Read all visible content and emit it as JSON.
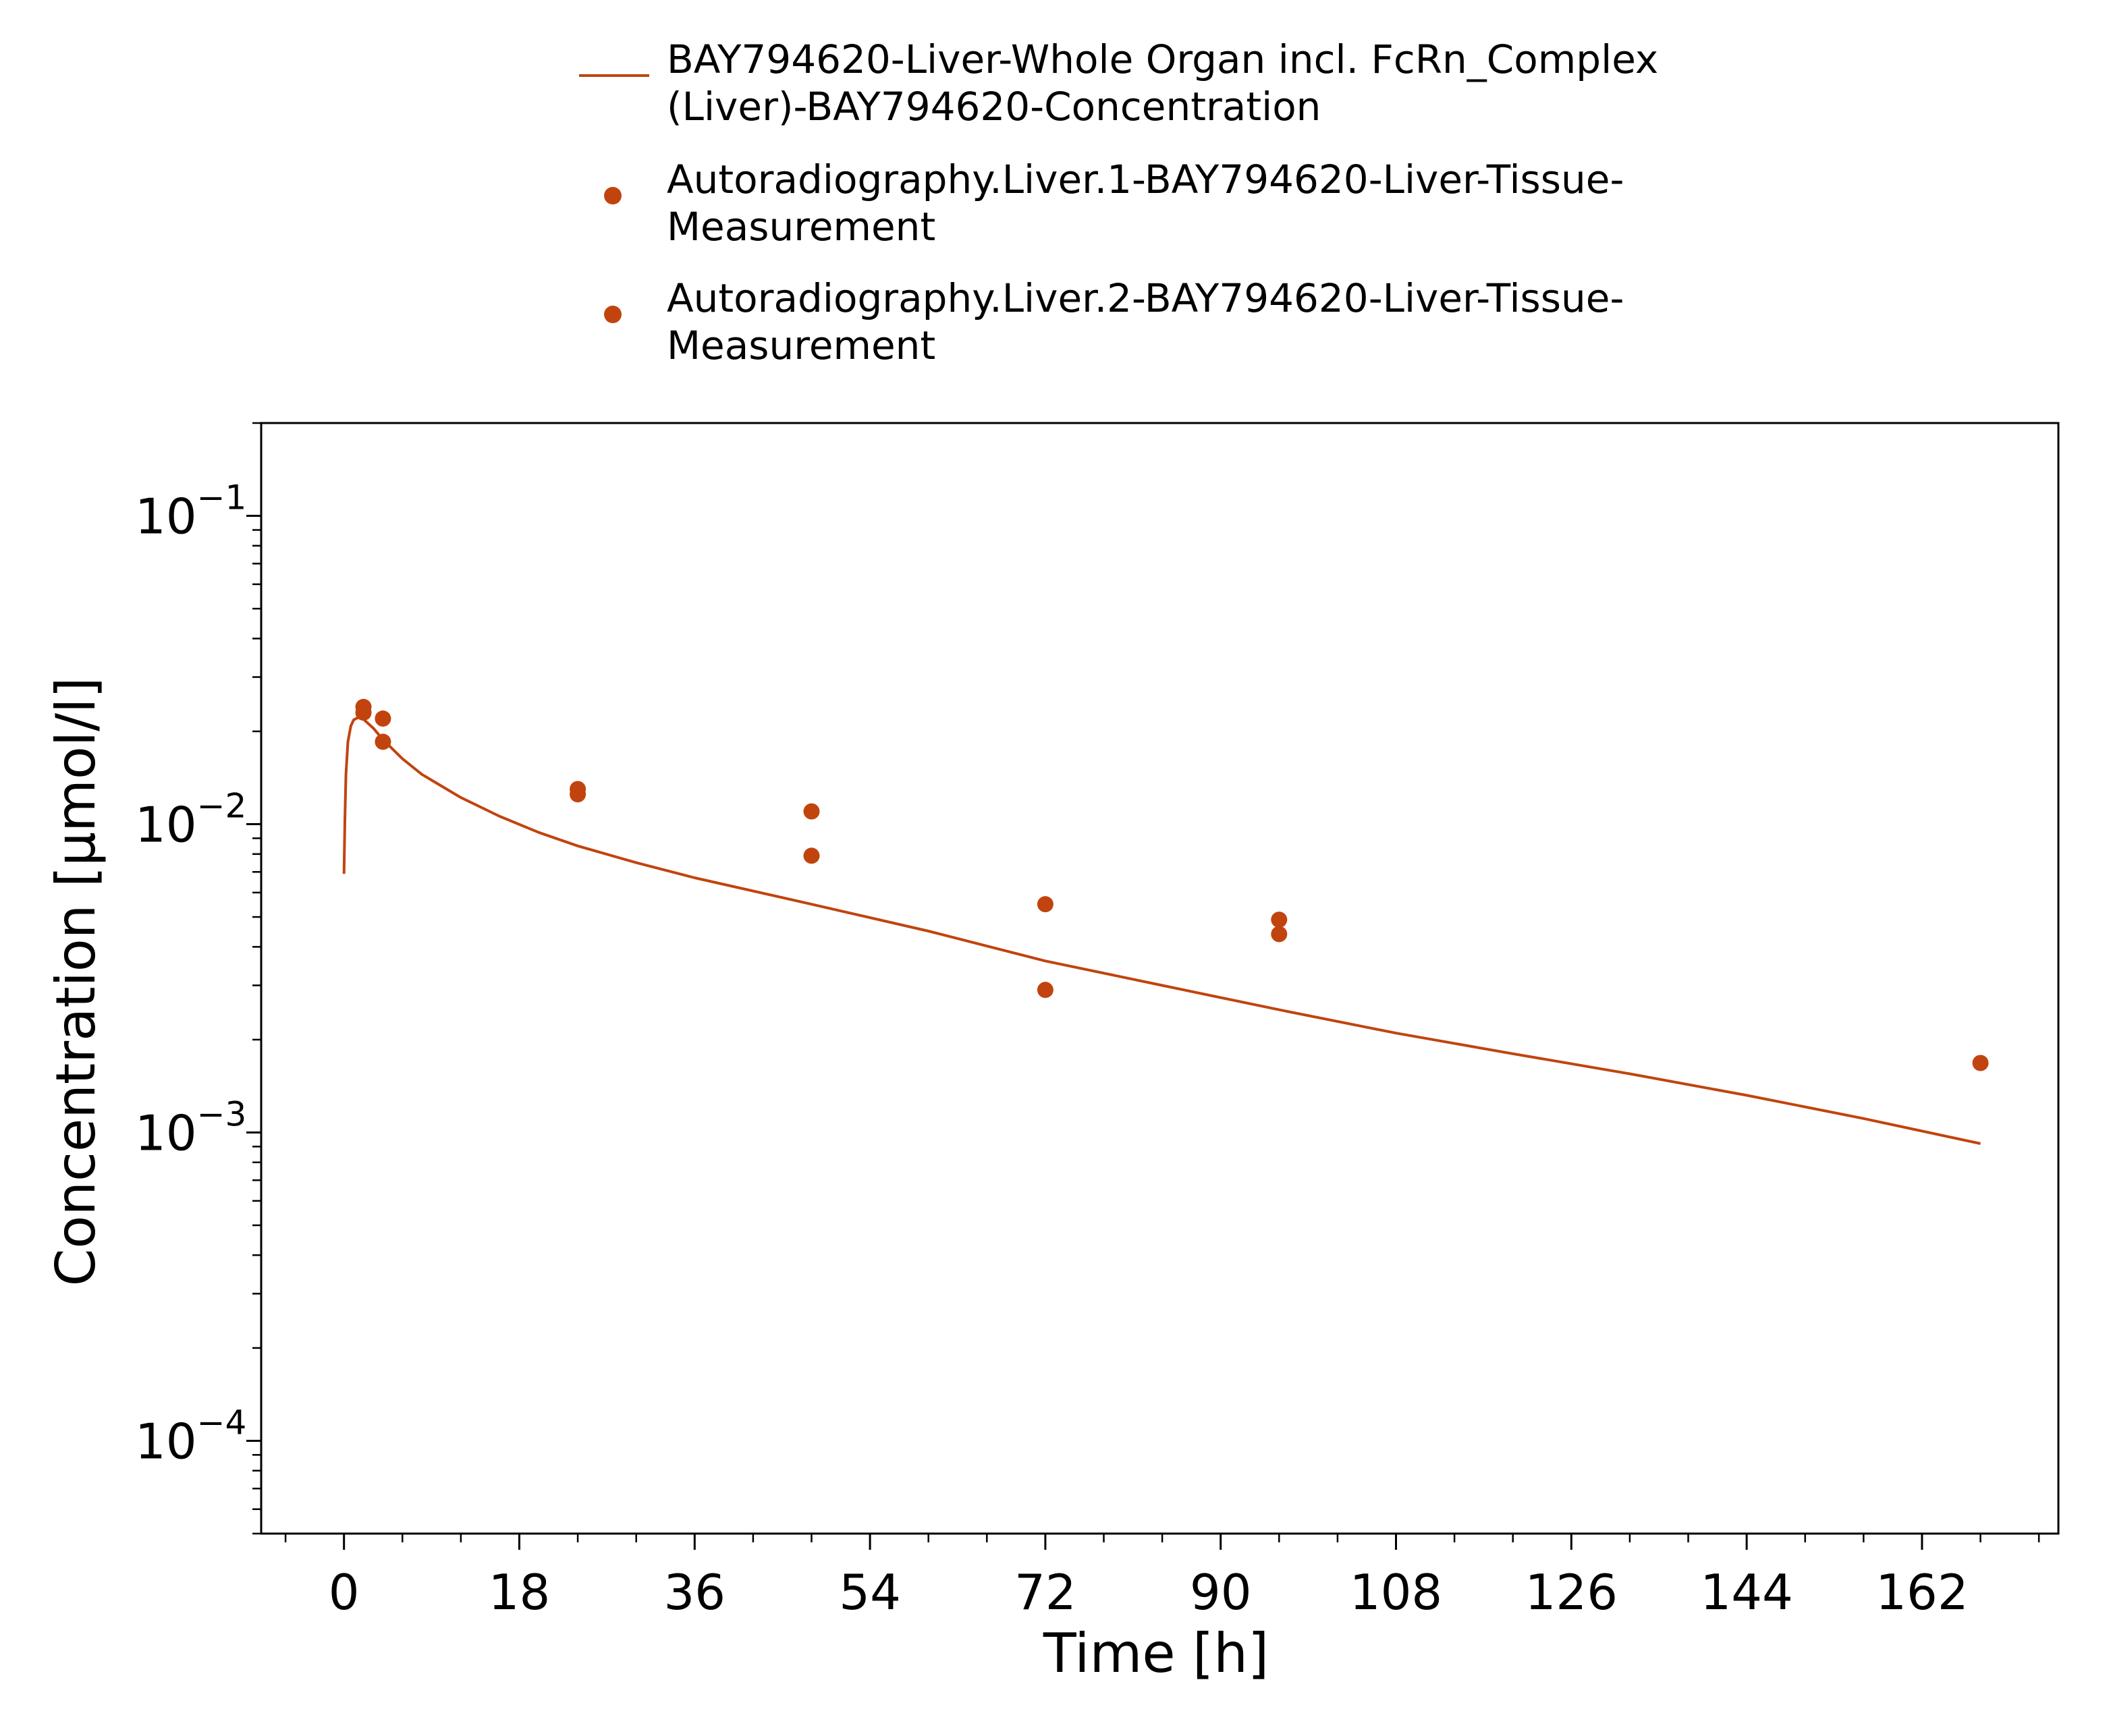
{
  "chart_data": {
    "type": "line",
    "xlabel": "Time [h]",
    "ylabel": "Concentration [µmol/l]",
    "xlim": [
      -8.5,
      176
    ],
    "ylim": [
      5e-05,
      0.2
    ],
    "y_scale": "log",
    "x_ticks": [
      0,
      18,
      36,
      54,
      72,
      90,
      108,
      126,
      144,
      162
    ],
    "x_tick_labels": [
      "0",
      "18",
      "36",
      "54",
      "72",
      "90",
      "108",
      "126",
      "144",
      "162"
    ],
    "y_ticks": [
      0.0001,
      0.001,
      0.01,
      0.1
    ],
    "y_tick_labels": [
      {
        "base": "10",
        "exp": "−4"
      },
      {
        "base": "10",
        "exp": "−3"
      },
      {
        "base": "10",
        "exp": "−2"
      },
      {
        "base": "10",
        "exp": "−1"
      }
    ],
    "grid": false,
    "legend_position": "top",
    "series": [
      {
        "name": "BAY794620-Liver-Whole Organ incl. FcRn_Complex (Liver)-BAY794620-Concentration",
        "name_lines": [
          "BAY794620-Liver-Whole Organ incl. FcRn_Complex",
          "(Liver)-BAY794620-Concentration"
        ],
        "kind": "line",
        "color": "#c1440e",
        "x": [
          0,
          0.1,
          0.2,
          0.4,
          0.7,
          1.0,
          1.5,
          2.0,
          3.0,
          4.0,
          6.0,
          8.0,
          12.0,
          16.0,
          20.0,
          24.0,
          30.0,
          36.0,
          48.0,
          60.0,
          72.0,
          84.0,
          96.0,
          108.0,
          120.0,
          132.0,
          144.0,
          156.0,
          168.0
        ],
        "y": [
          0.0069,
          0.0105,
          0.0145,
          0.0185,
          0.0208,
          0.0218,
          0.0222,
          0.0219,
          0.0205,
          0.0188,
          0.0163,
          0.0145,
          0.0122,
          0.0106,
          0.0094,
          0.0085,
          0.0075,
          0.0067,
          0.0055,
          0.0045,
          0.0036,
          0.003,
          0.0025,
          0.0021,
          0.0018,
          0.00155,
          0.00132,
          0.00111,
          0.00092
        ]
      },
      {
        "name": "Autoradiography.Liver.1-BAY794620-Liver-Tissue-Measurement",
        "name_lines": [
          "Autoradiography.Liver.1-BAY794620-Liver-Tissue-",
          "Measurement"
        ],
        "kind": "scatter",
        "color": "#c1440e",
        "x": [
          2,
          4,
          24,
          48,
          72,
          96,
          168
        ],
        "y": [
          0.024,
          0.022,
          0.013,
          0.011,
          0.0055,
          0.0049,
          0.00168
        ]
      },
      {
        "name": "Autoradiography.Liver.2-BAY794620-Liver-Tissue-Measurement",
        "name_lines": [
          "Autoradiography.Liver.2-BAY794620-Liver-Tissue-",
          "Measurement"
        ],
        "kind": "scatter",
        "color": "#c1440e",
        "x": [
          2,
          4,
          24,
          48,
          72,
          96
        ],
        "y": [
          0.023,
          0.0185,
          0.0125,
          0.0079,
          0.0029,
          0.0044
        ]
      }
    ]
  }
}
